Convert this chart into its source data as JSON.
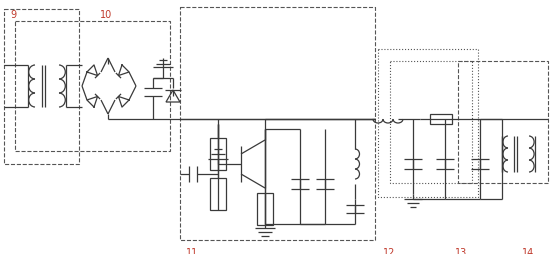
{
  "fig_width": 5.58,
  "fig_height": 2.55,
  "dpi": 100,
  "bg_color": "#ffffff",
  "line_color": "#3a3a3a",
  "lw": 0.9
}
